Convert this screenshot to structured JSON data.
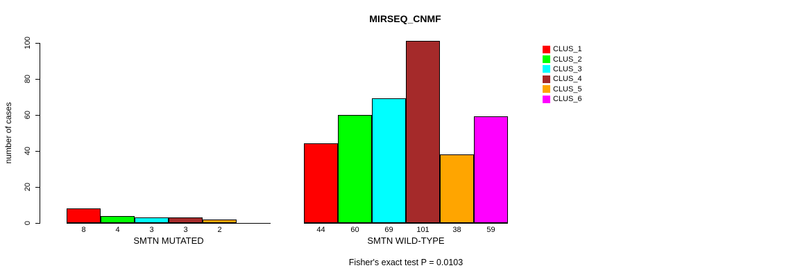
{
  "chart_data": {
    "type": "bar",
    "title": "MIRSEQ_CNMF",
    "ylabel": "number of cases",
    "footer": "Fisher's exact test P = 0.0103",
    "ylim": [
      0,
      100
    ],
    "yticks": [
      0,
      20,
      40,
      60,
      80,
      100
    ],
    "grid": false,
    "legend_position": "right",
    "background_color": "#FFFFFF",
    "bar_border_color": "#000000",
    "axis_color": "#000000",
    "legend": [
      {
        "label": "CLUS_1",
        "color": "#FF0000"
      },
      {
        "label": "CLUS_2",
        "color": "#00FF00"
      },
      {
        "label": "CLUS_3",
        "color": "#00FFFF"
      },
      {
        "label": "CLUS_4",
        "color": "#A52A2A"
      },
      {
        "label": "CLUS_5",
        "color": "#FFA500"
      },
      {
        "label": "CLUS_6",
        "color": "#FF00FF"
      }
    ],
    "groups": [
      {
        "label": "SMTN MUTATED",
        "values": [
          8,
          4,
          3,
          3,
          2,
          0
        ],
        "bar_labels": [
          "8",
          "4",
          "3",
          "3",
          "2",
          ""
        ]
      },
      {
        "label": "SMTN WILD-TYPE",
        "values": [
          44,
          60,
          69,
          101,
          38,
          59
        ],
        "bar_labels": [
          "44",
          "60",
          "69",
          "101",
          "38",
          "59"
        ]
      }
    ]
  }
}
